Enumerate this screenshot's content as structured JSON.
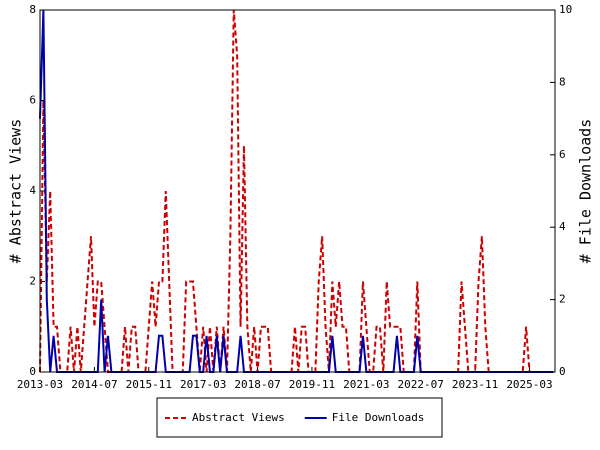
{
  "chart_data": {
    "type": "line",
    "x": [
      "2013-03",
      "2013-04",
      "2013-05",
      "2013-06",
      "2013-07",
      "2013-08",
      "2013-09",
      "2013-10",
      "2013-11",
      "2013-12",
      "2014-01",
      "2014-02",
      "2014-03",
      "2014-04",
      "2014-05",
      "2014-06",
      "2014-07",
      "2014-08",
      "2014-09",
      "2014-10",
      "2014-11",
      "2014-12",
      "2015-01",
      "2015-02",
      "2015-03",
      "2015-04",
      "2015-05",
      "2015-06",
      "2015-07",
      "2015-08",
      "2015-09",
      "2015-10",
      "2015-11",
      "2015-12",
      "2016-01",
      "2016-02",
      "2016-03",
      "2016-04",
      "2016-05",
      "2016-06",
      "2016-07",
      "2016-08",
      "2016-09",
      "2016-10",
      "2016-11",
      "2016-12",
      "2017-01",
      "2017-02",
      "2017-03",
      "2017-04",
      "2017-05",
      "2017-06",
      "2017-07",
      "2017-08",
      "2017-09",
      "2017-10",
      "2017-11",
      "2017-12",
      "2018-01",
      "2018-02",
      "2018-03",
      "2018-04",
      "2018-05",
      "2018-06",
      "2018-07",
      "2018-08",
      "2018-09",
      "2018-10",
      "2018-11",
      "2018-12",
      "2019-01",
      "2019-02",
      "2019-03",
      "2019-04",
      "2019-05",
      "2019-06",
      "2019-07",
      "2019-08",
      "2019-09",
      "2019-10",
      "2019-11",
      "2019-12",
      "2020-01",
      "2020-02",
      "2020-03",
      "2020-04",
      "2020-05",
      "2020-06",
      "2020-07",
      "2020-08",
      "2020-09",
      "2020-10",
      "2020-11",
      "2020-12",
      "2021-01",
      "2021-02",
      "2021-03",
      "2021-04",
      "2021-05",
      "2021-06",
      "2021-07",
      "2021-08",
      "2021-09",
      "2021-10",
      "2021-11",
      "2021-12",
      "2022-01",
      "2022-02",
      "2022-03",
      "2022-04",
      "2022-05",
      "2022-06",
      "2022-07",
      "2022-08",
      "2022-09",
      "2022-10",
      "2022-11",
      "2022-12",
      "2023-01",
      "2023-02",
      "2023-03",
      "2023-04",
      "2023-05",
      "2023-06",
      "2023-07",
      "2023-08",
      "2023-09",
      "2023-10",
      "2023-11",
      "2023-12",
      "2024-01",
      "2024-02",
      "2024-03",
      "2024-04",
      "2024-05",
      "2024-06",
      "2024-07",
      "2024-08",
      "2024-09",
      "2024-10",
      "2024-11",
      "2024-12",
      "2025-01",
      "2025-02",
      "2025-03",
      "2025-04",
      "2025-05",
      "2025-06",
      "2025-07",
      "2025-08",
      "2025-09",
      "2025-10"
    ],
    "series": [
      {
        "name": "Abstract Views",
        "color": "#cc0000",
        "line_style": "dashed",
        "axis": "y",
        "values": [
          0,
          6,
          2,
          4,
          1,
          1,
          0,
          0,
          0,
          1,
          0,
          1,
          0,
          1,
          2,
          3,
          1,
          2,
          2,
          1,
          0,
          0,
          0,
          0,
          0,
          1,
          0,
          1,
          1,
          0,
          0,
          0,
          1,
          2,
          1,
          2,
          2,
          4,
          2,
          0,
          0,
          0,
          0,
          2,
          2,
          2,
          1,
          0,
          1,
          0,
          1,
          0,
          1,
          0,
          1,
          0,
          3,
          8,
          7,
          1,
          5,
          1,
          0,
          1,
          0,
          1,
          1,
          1,
          0,
          0,
          0,
          0,
          0,
          0,
          0,
          1,
          0,
          1,
          1,
          0,
          0,
          0,
          2,
          3,
          1,
          0,
          2,
          1,
          2,
          1,
          1,
          0,
          0,
          0,
          0,
          2,
          1,
          0,
          0,
          1,
          1,
          0,
          2,
          1,
          1,
          1,
          1,
          0,
          0,
          0,
          0,
          2,
          0,
          0,
          0,
          0,
          0,
          0,
          0,
          0,
          0,
          0,
          0,
          0,
          2,
          1,
          0,
          0,
          0,
          2,
          3,
          1,
          0,
          0,
          0,
          0,
          0,
          0,
          0,
          0,
          0,
          0,
          0,
          1,
          0,
          0,
          0,
          0,
          0,
          0,
          0,
          0
        ]
      },
      {
        "name": "File Downloads",
        "color": "#0000aa",
        "line_style": "solid",
        "axis": "y2",
        "values": [
          7,
          10,
          2,
          0,
          1,
          0,
          0,
          0,
          0,
          0,
          0,
          0,
          0,
          0,
          0,
          0,
          0,
          0,
          2,
          0,
          1,
          0,
          0,
          0,
          0,
          0,
          0,
          0,
          0,
          0,
          0,
          0,
          0,
          0,
          0,
          1,
          1,
          0,
          0,
          0,
          0,
          0,
          0,
          0,
          0,
          1,
          1,
          0,
          0,
          1,
          0,
          0,
          1,
          0,
          1,
          0,
          0,
          0,
          0,
          1,
          0,
          0,
          0,
          0,
          0,
          0,
          0,
          0,
          0,
          0,
          0,
          0,
          0,
          0,
          0,
          0,
          0,
          0,
          0,
          0,
          0,
          0,
          0,
          0,
          0,
          0,
          1,
          0,
          0,
          0,
          0,
          0,
          0,
          0,
          0,
          1,
          0,
          0,
          0,
          0,
          0,
          0,
          0,
          0,
          0,
          1,
          0,
          0,
          0,
          0,
          0,
          1,
          0,
          0,
          0,
          0,
          0,
          0,
          0,
          0,
          0,
          0,
          0,
          0,
          0,
          0,
          0,
          0,
          0,
          0,
          0,
          0,
          0,
          0,
          0,
          0,
          0,
          0,
          0,
          0,
          0,
          0,
          0,
          0,
          0,
          0,
          0,
          0,
          0,
          0,
          0,
          0
        ]
      }
    ],
    "xlim": [
      "2013-03",
      "2025-10"
    ],
    "xticks": [
      "2013-03",
      "2014-07",
      "2015-11",
      "2017-03",
      "2018-07",
      "2019-11",
      "2021-03",
      "2022-07",
      "2023-11",
      "2025-03"
    ],
    "ylim": [
      0,
      8
    ],
    "yticks": [
      0,
      2,
      4,
      6,
      8
    ],
    "y2lim": [
      0,
      10
    ],
    "y2ticks": [
      0,
      2,
      4,
      6,
      8,
      10
    ],
    "ylabel": "# Abstract Views",
    "y2label": "# File Downloads",
    "legend": "bottom"
  }
}
